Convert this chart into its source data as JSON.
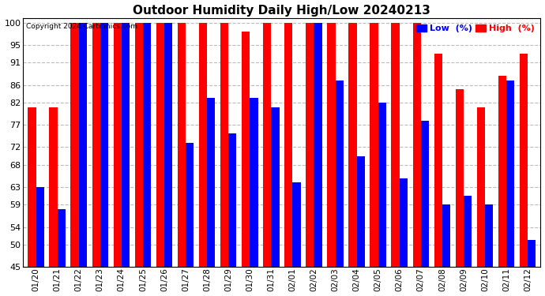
{
  "title": "Outdoor Humidity Daily High/Low 20240213",
  "copyright": "Copyright 2024 Cartronics.com",
  "legend_low": "Low  (%)",
  "legend_high": "High  (%)",
  "categories": [
    "01/20",
    "01/21",
    "01/22",
    "01/23",
    "01/24",
    "01/25",
    "01/26",
    "01/27",
    "01/28",
    "01/29",
    "01/30",
    "01/31",
    "02/01",
    "02/02",
    "02/03",
    "02/04",
    "02/05",
    "02/06",
    "02/07",
    "02/08",
    "02/09",
    "02/10",
    "02/11",
    "02/12"
  ],
  "high": [
    81,
    81,
    100,
    100,
    100,
    100,
    100,
    100,
    100,
    100,
    98,
    100,
    100,
    100,
    100,
    100,
    100,
    100,
    100,
    93,
    85,
    81,
    88,
    93
  ],
  "low": [
    63,
    58,
    100,
    100,
    100,
    100,
    100,
    73,
    83,
    75,
    83,
    81,
    64,
    100,
    87,
    70,
    82,
    65,
    78,
    59,
    61,
    59,
    87,
    51
  ],
  "high_color": "#ff0000",
  "low_color": "#0000ff",
  "bg_color": "#ffffff",
  "grid_color": "#aaaaaa",
  "ymin": 45,
  "ymax": 100,
  "ylim": [
    45,
    101
  ],
  "yticks": [
    45,
    50,
    54,
    59,
    63,
    68,
    72,
    77,
    82,
    86,
    91,
    95,
    100
  ],
  "bar_width": 0.38,
  "figsize": [
    6.9,
    3.75
  ],
  "dpi": 100
}
